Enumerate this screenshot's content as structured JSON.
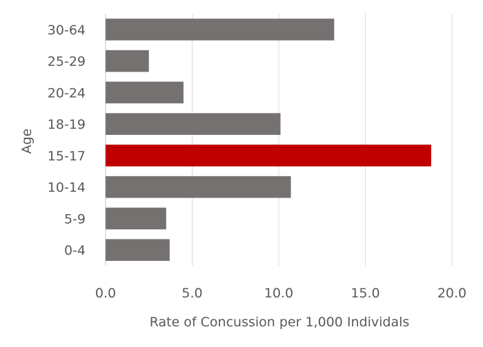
{
  "chart_data": {
    "type": "bar",
    "orientation": "horizontal",
    "categories": [
      "0-4",
      "5-9",
      "10-14",
      "15-17",
      "18-19",
      "20-24",
      "25-29",
      "30-64"
    ],
    "values": [
      3.7,
      3.5,
      10.7,
      18.8,
      10.1,
      4.5,
      2.5,
      13.2
    ],
    "highlight_category": "15-17",
    "colors": {
      "bar": "#767171",
      "highlight": "#c00000",
      "grid": "#d9d9d9",
      "text": "#595959"
    },
    "xlabel": "Rate of Concussion per 1,000 Individals",
    "ylabel": "Age",
    "xlim": [
      0,
      20
    ],
    "xticks": [
      "0.0",
      "5.0",
      "10.0",
      "15.0",
      "20.0"
    ],
    "grid": "vertical",
    "legend": "none"
  }
}
